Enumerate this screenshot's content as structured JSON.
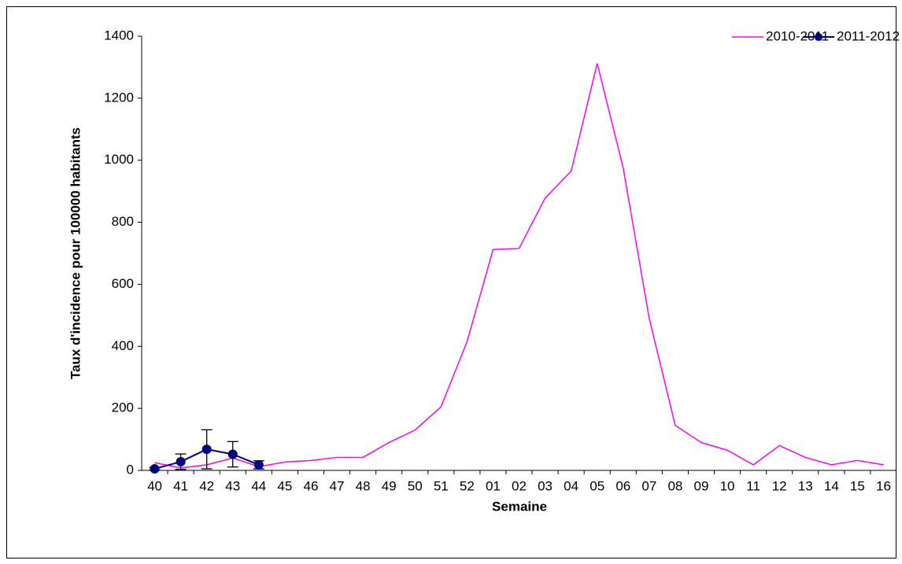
{
  "chart_data": {
    "type": "line",
    "x_label": "Semaine",
    "y_label": "Taux d'incidence pour 100000 habitants",
    "categories": [
      "40",
      "41",
      "42",
      "43",
      "44",
      "45",
      "46",
      "47",
      "48",
      "49",
      "50",
      "51",
      "52",
      "01",
      "02",
      "03",
      "04",
      "05",
      "06",
      "07",
      "08",
      "09",
      "10",
      "11",
      "12",
      "13",
      "14",
      "15",
      "16"
    ],
    "series": [
      {
        "name": "2010-2011",
        "color": "#ff00ff",
        "marker": false,
        "values": [
          25,
          8,
          18,
          40,
          12,
          27,
          32,
          42,
          42,
          90,
          130,
          205,
          415,
          712,
          716,
          878,
          965,
          1312,
          975,
          490,
          145,
          90,
          65,
          18,
          80,
          42,
          18,
          32,
          18
        ]
      },
      {
        "name": "2011-2012",
        "color": "#000080",
        "marker": true,
        "values": [
          5,
          28,
          68,
          52,
          18,
          null,
          null,
          null,
          null,
          null,
          null,
          null,
          null,
          null,
          null,
          null,
          null,
          null,
          null,
          null,
          null,
          null,
          null,
          null,
          null,
          null,
          null,
          null,
          null
        ],
        "errors": [
          4,
          25,
          63,
          41,
          13,
          null,
          null,
          null,
          null,
          null,
          null,
          null,
          null,
          null,
          null,
          null,
          null,
          null,
          null,
          null,
          null,
          null,
          null,
          null,
          null,
          null,
          null,
          null,
          null
        ]
      }
    ],
    "ylim": [
      0,
      1400
    ],
    "yticks": [
      0,
      200,
      400,
      600,
      800,
      1000,
      1200,
      1400
    ],
    "grid": false,
    "legend": "top-right"
  }
}
